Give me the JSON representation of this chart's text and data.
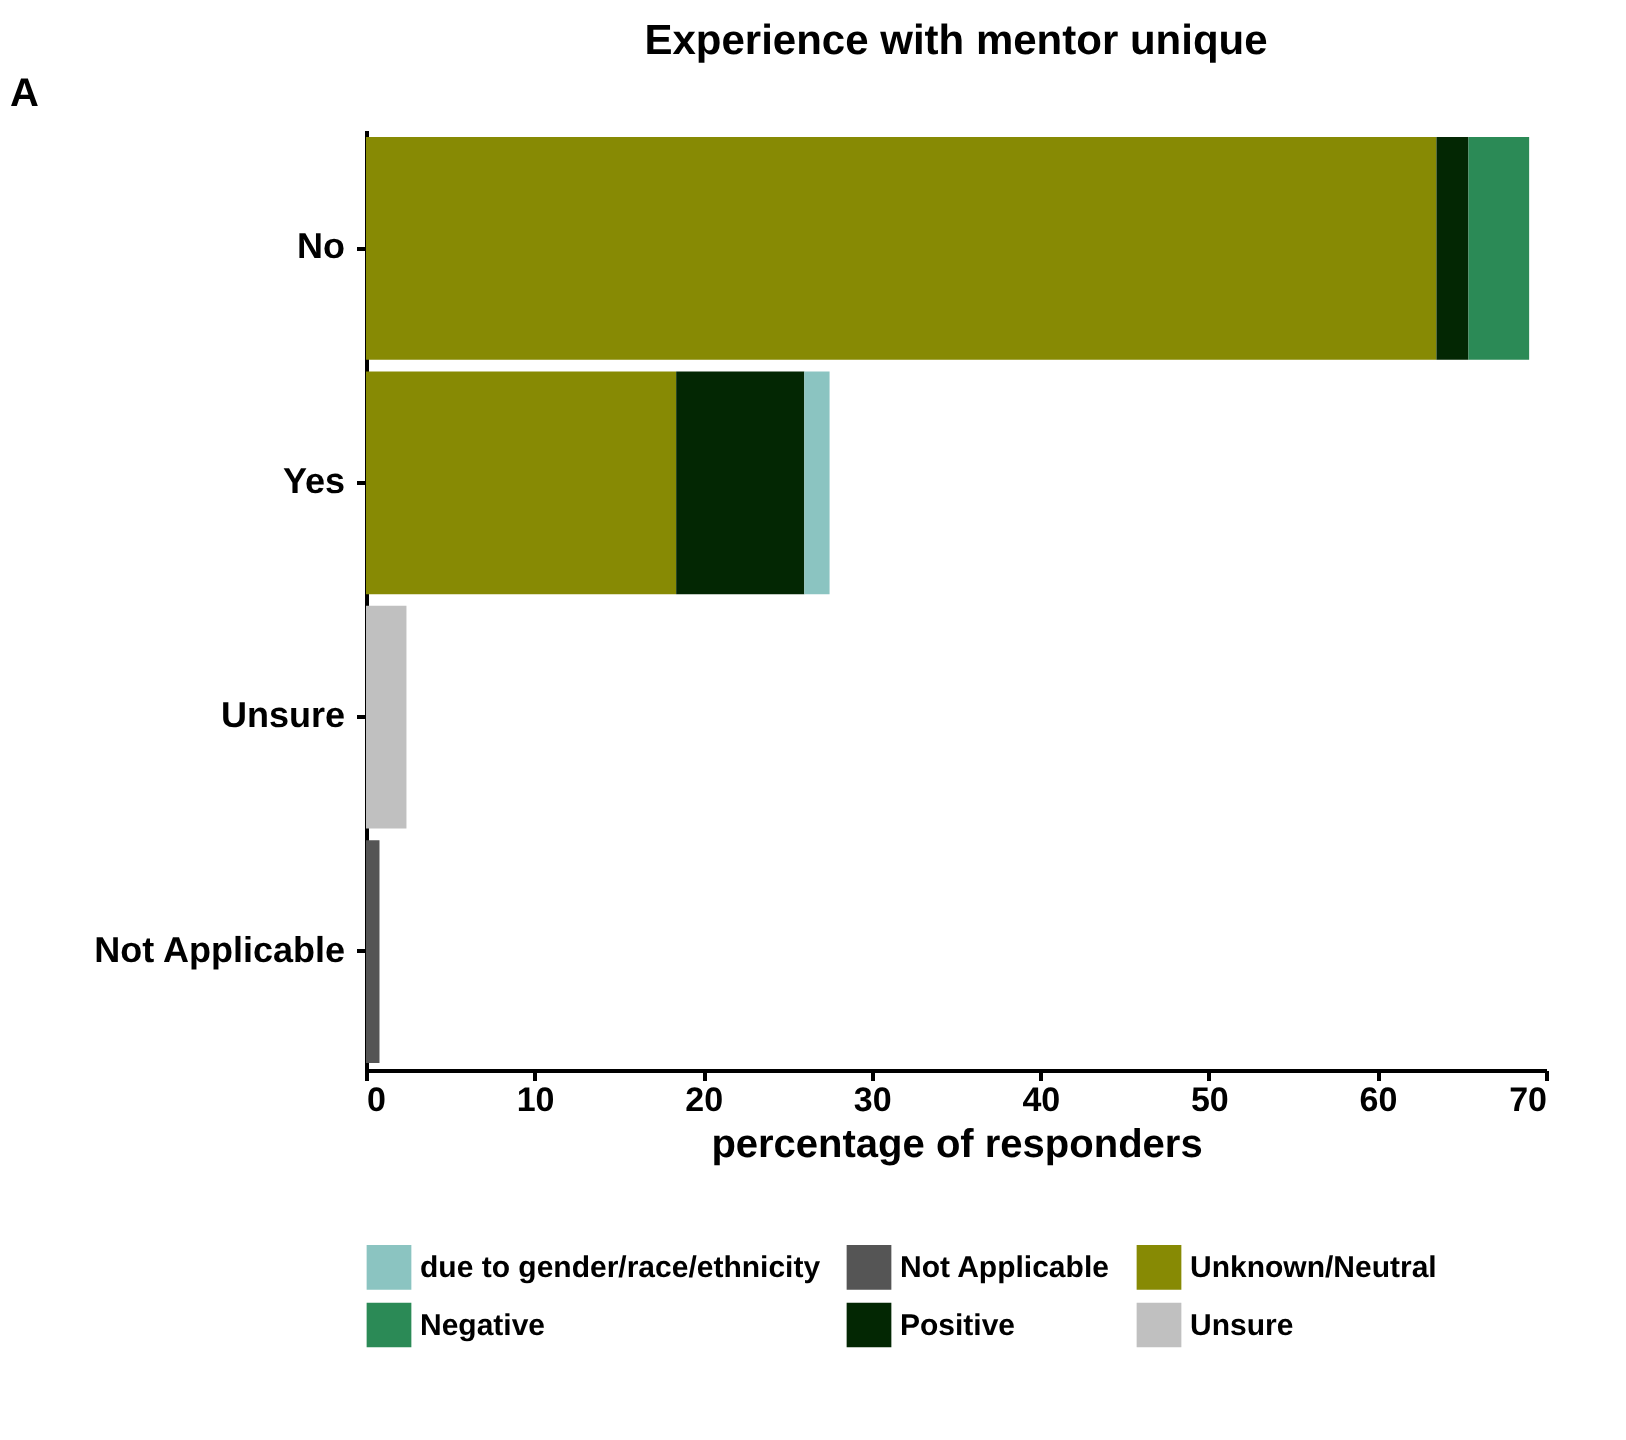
{
  "chart_data": {
    "type": "bar",
    "orientation": "horizontal",
    "stacked": true,
    "title": "Experience with mentor unique",
    "xlabel": "percentage of responders",
    "categories": [
      "No",
      "Yes",
      "Unsure",
      "Not Applicable"
    ],
    "series": [
      {
        "name": "Unknown/Neutral",
        "color": "#878a04",
        "values": [
          63.5,
          18.4,
          null,
          null
        ]
      },
      {
        "name": "Positive",
        "color": "#032703",
        "values": [
          1.9,
          7.6,
          null,
          null
        ]
      },
      {
        "name": "Negative",
        "color": "#2b8a56",
        "values": [
          3.6,
          null,
          null,
          null
        ]
      },
      {
        "name": "due to gender/race/ethnicity",
        "color": "#8bc4c1",
        "values": [
          null,
          1.5,
          null,
          null
        ]
      },
      {
        "name": "Not Applicable",
        "color": "#555555",
        "values": [
          null,
          null,
          null,
          0.8
        ]
      },
      {
        "name": "Unsure",
        "color": "#c0c0c0",
        "values": [
          null,
          null,
          2.4,
          null
        ]
      }
    ],
    "xlim": [
      0,
      70
    ],
    "xticks": [
      0,
      10,
      20,
      30,
      40,
      50,
      60,
      70
    ],
    "grid": false,
    "legend": "bottom",
    "annotations": [
      "A"
    ]
  }
}
